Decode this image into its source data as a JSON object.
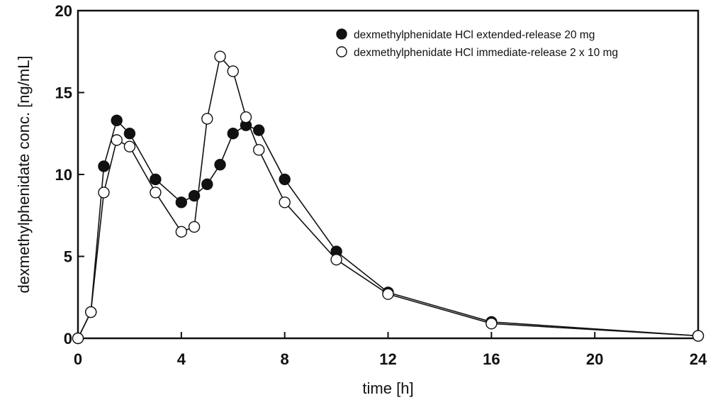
{
  "chart_data": {
    "type": "line",
    "title": "",
    "xlabel": "time [h]",
    "ylabel": "dexmethylphenidate conc. [ng/mL]",
    "xlim": [
      0,
      24
    ],
    "ylim": [
      0,
      20
    ],
    "xticks": [
      0,
      4,
      8,
      12,
      16,
      20,
      24
    ],
    "yticks": [
      0,
      5,
      10,
      15,
      20
    ],
    "grid": false,
    "legend_position": "top-right",
    "series": [
      {
        "name": "dexmethylphenidate HCl extended-release 20 mg",
        "marker": "filled-circle",
        "color": "#111111",
        "x": [
          0,
          0.5,
          1,
          1.5,
          2,
          3,
          4,
          4.5,
          5,
          5.5,
          6,
          6.5,
          7,
          8,
          10,
          12,
          16,
          24
        ],
        "y": [
          0,
          1.6,
          10.5,
          13.3,
          12.5,
          9.7,
          8.3,
          8.7,
          9.4,
          10.6,
          12.5,
          13.0,
          12.7,
          9.7,
          5.3,
          2.8,
          1.0,
          0.15
        ]
      },
      {
        "name": "dexmethylphenidate HCl immediate-release 2 x 10 mg",
        "marker": "open-circle",
        "color": "#111111",
        "x": [
          0,
          0.5,
          1,
          1.5,
          2,
          3,
          4,
          4.5,
          5,
          5.5,
          6,
          6.5,
          7,
          8,
          10,
          12,
          16,
          24
        ],
        "y": [
          0,
          1.6,
          8.9,
          12.1,
          11.7,
          8.9,
          6.5,
          6.8,
          13.4,
          17.2,
          16.3,
          13.5,
          11.5,
          8.3,
          4.8,
          2.7,
          0.9,
          0.15
        ]
      }
    ]
  }
}
